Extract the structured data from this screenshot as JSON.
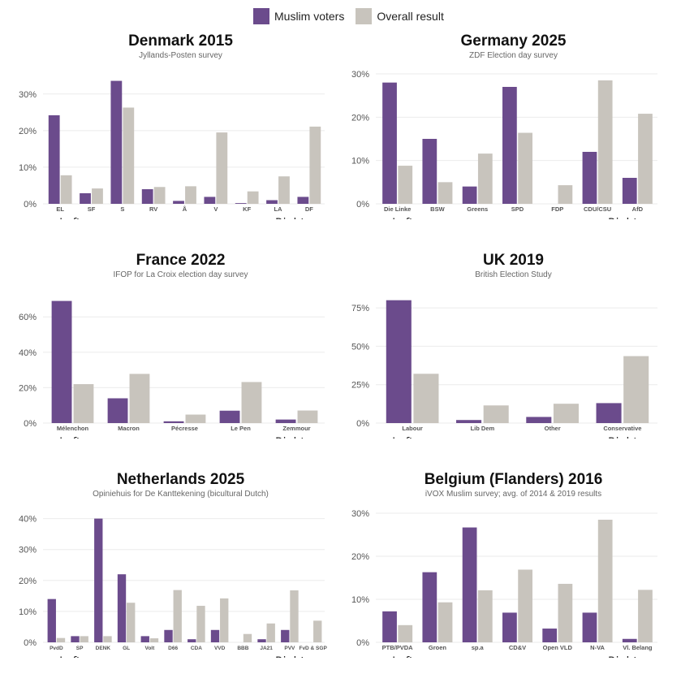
{
  "legend": {
    "muslim": "Muslim voters",
    "overall": "Overall result"
  },
  "colors": {
    "muslim": "#6b4b8c",
    "overall": "#c8c4bd",
    "grid": "#ebebeb",
    "axis_text": "#555"
  },
  "axis_hints": {
    "left": "← Left",
    "right": "Right →"
  },
  "chart_data": [
    {
      "type": "bar",
      "title": "Denmark 2015",
      "subtitle": "Jyllands-Posten survey",
      "ylim": [
        0,
        35.5
      ],
      "yticks": [
        0,
        10,
        20,
        30
      ],
      "tick_labels": [
        "0%",
        "10%",
        "20%",
        "30%"
      ],
      "categories": [
        "EL",
        "SF",
        "S",
        "RV",
        "Å",
        "V",
        "KF",
        "LA",
        "DF"
      ],
      "series": [
        {
          "name": "Muslim voters",
          "values": [
            24.2,
            2.9,
            33.6,
            4.0,
            0.8,
            1.9,
            0.2,
            1.0,
            1.9
          ]
        },
        {
          "name": "Overall result",
          "values": [
            7.8,
            4.2,
            26.3,
            4.6,
            4.8,
            19.5,
            3.4,
            7.5,
            21.1
          ]
        }
      ]
    },
    {
      "type": "bar",
      "title": "Germany 2025",
      "subtitle": "ZDF Election day survey",
      "ylim": [
        0,
        30
      ],
      "yticks": [
        0,
        10,
        20,
        30
      ],
      "tick_labels": [
        "0%",
        "10%",
        "20%",
        "30%"
      ],
      "categories": [
        "Die Linke",
        "BSW",
        "Greens",
        "SPD",
        "FDP",
        "CDU/CSU",
        "AfD"
      ],
      "series": [
        {
          "name": "Muslim voters",
          "values": [
            28,
            15,
            4,
            27,
            0,
            12,
            6
          ]
        },
        {
          "name": "Overall result",
          "values": [
            8.8,
            5.0,
            11.6,
            16.4,
            4.3,
            28.5,
            20.8
          ]
        }
      ]
    },
    {
      "type": "bar",
      "title": "France 2022",
      "subtitle": "IFOP for La Croix election day survey",
      "ylim": [
        0,
        73.4
      ],
      "yticks": [
        0,
        20,
        40,
        60
      ],
      "tick_labels": [
        "0%",
        "20%",
        "40%",
        "60%"
      ],
      "categories": [
        "Mélenchon",
        "Macron",
        "Pécresse",
        "Le Pen",
        "Zemmour"
      ],
      "series": [
        {
          "name": "Muslim voters",
          "values": [
            69,
            14,
            1,
            7,
            2
          ]
        },
        {
          "name": "Overall result",
          "values": [
            22,
            27.8,
            4.8,
            23.2,
            7.1
          ]
        }
      ]
    },
    {
      "type": "bar",
      "title": "UK 2019",
      "subtitle": "British Election Study",
      "ylim": [
        0,
        84.6
      ],
      "yticks": [
        0,
        25,
        50,
        75
      ],
      "tick_labels": [
        "0%",
        "25%",
        "50%",
        "75%"
      ],
      "categories": [
        "Labour",
        "Lib Dem",
        "Other",
        "Conservative"
      ],
      "series": [
        {
          "name": "Muslim voters",
          "values": [
            80,
            2,
            4,
            13
          ]
        },
        {
          "name": "Overall result",
          "values": [
            32.1,
            11.5,
            12.6,
            43.6
          ]
        }
      ]
    },
    {
      "type": "bar",
      "title": "Netherlands 2025",
      "subtitle": "Opiniehuis for De Kanttekening (bicultural Dutch)",
      "ylim": [
        0,
        42
      ],
      "yticks": [
        0,
        10,
        20,
        30,
        40
      ],
      "tick_labels": [
        "0%",
        "10%",
        "20%",
        "30%",
        "40%"
      ],
      "categories": [
        "PvdD",
        "SP",
        "DENK",
        "GL",
        "Volt",
        "D66",
        "CDA",
        "VVD",
        "BBB",
        "JA21",
        "PVV",
        "FvD & SGP"
      ],
      "series": [
        {
          "name": "Muslim voters",
          "values": [
            14,
            2,
            40,
            22,
            2,
            4,
            1,
            4,
            0,
            1,
            4,
            0
          ]
        },
        {
          "name": "Overall result",
          "values": [
            1.4,
            2,
            2,
            12.8,
            1.3,
            16.9,
            11.8,
            14.2,
            2.7,
            6.1,
            16.8,
            7.0
          ]
        }
      ]
    },
    {
      "type": "bar",
      "title": "Belgium (Flanders) 2016",
      "subtitle": "iVOX Muslim survey; avg. of 2014 & 2019 results",
      "ylim": [
        0,
        30.2
      ],
      "yticks": [
        0,
        10,
        20,
        30
      ],
      "tick_labels": [
        "0%",
        "10%",
        "20%",
        "30%"
      ],
      "categories": [
        "PTB/PVDA",
        "Groen",
        "sp.a",
        "CD&V",
        "Open VLD",
        "N-VA",
        "Vl. Belang"
      ],
      "series": [
        {
          "name": "Muslim voters",
          "values": [
            7.2,
            16.3,
            26.7,
            6.9,
            3.2,
            6.9,
            0.8
          ]
        },
        {
          "name": "Overall result",
          "values": [
            4.0,
            9.3,
            12.1,
            16.9,
            13.6,
            28.5,
            12.2
          ]
        }
      ]
    }
  ]
}
